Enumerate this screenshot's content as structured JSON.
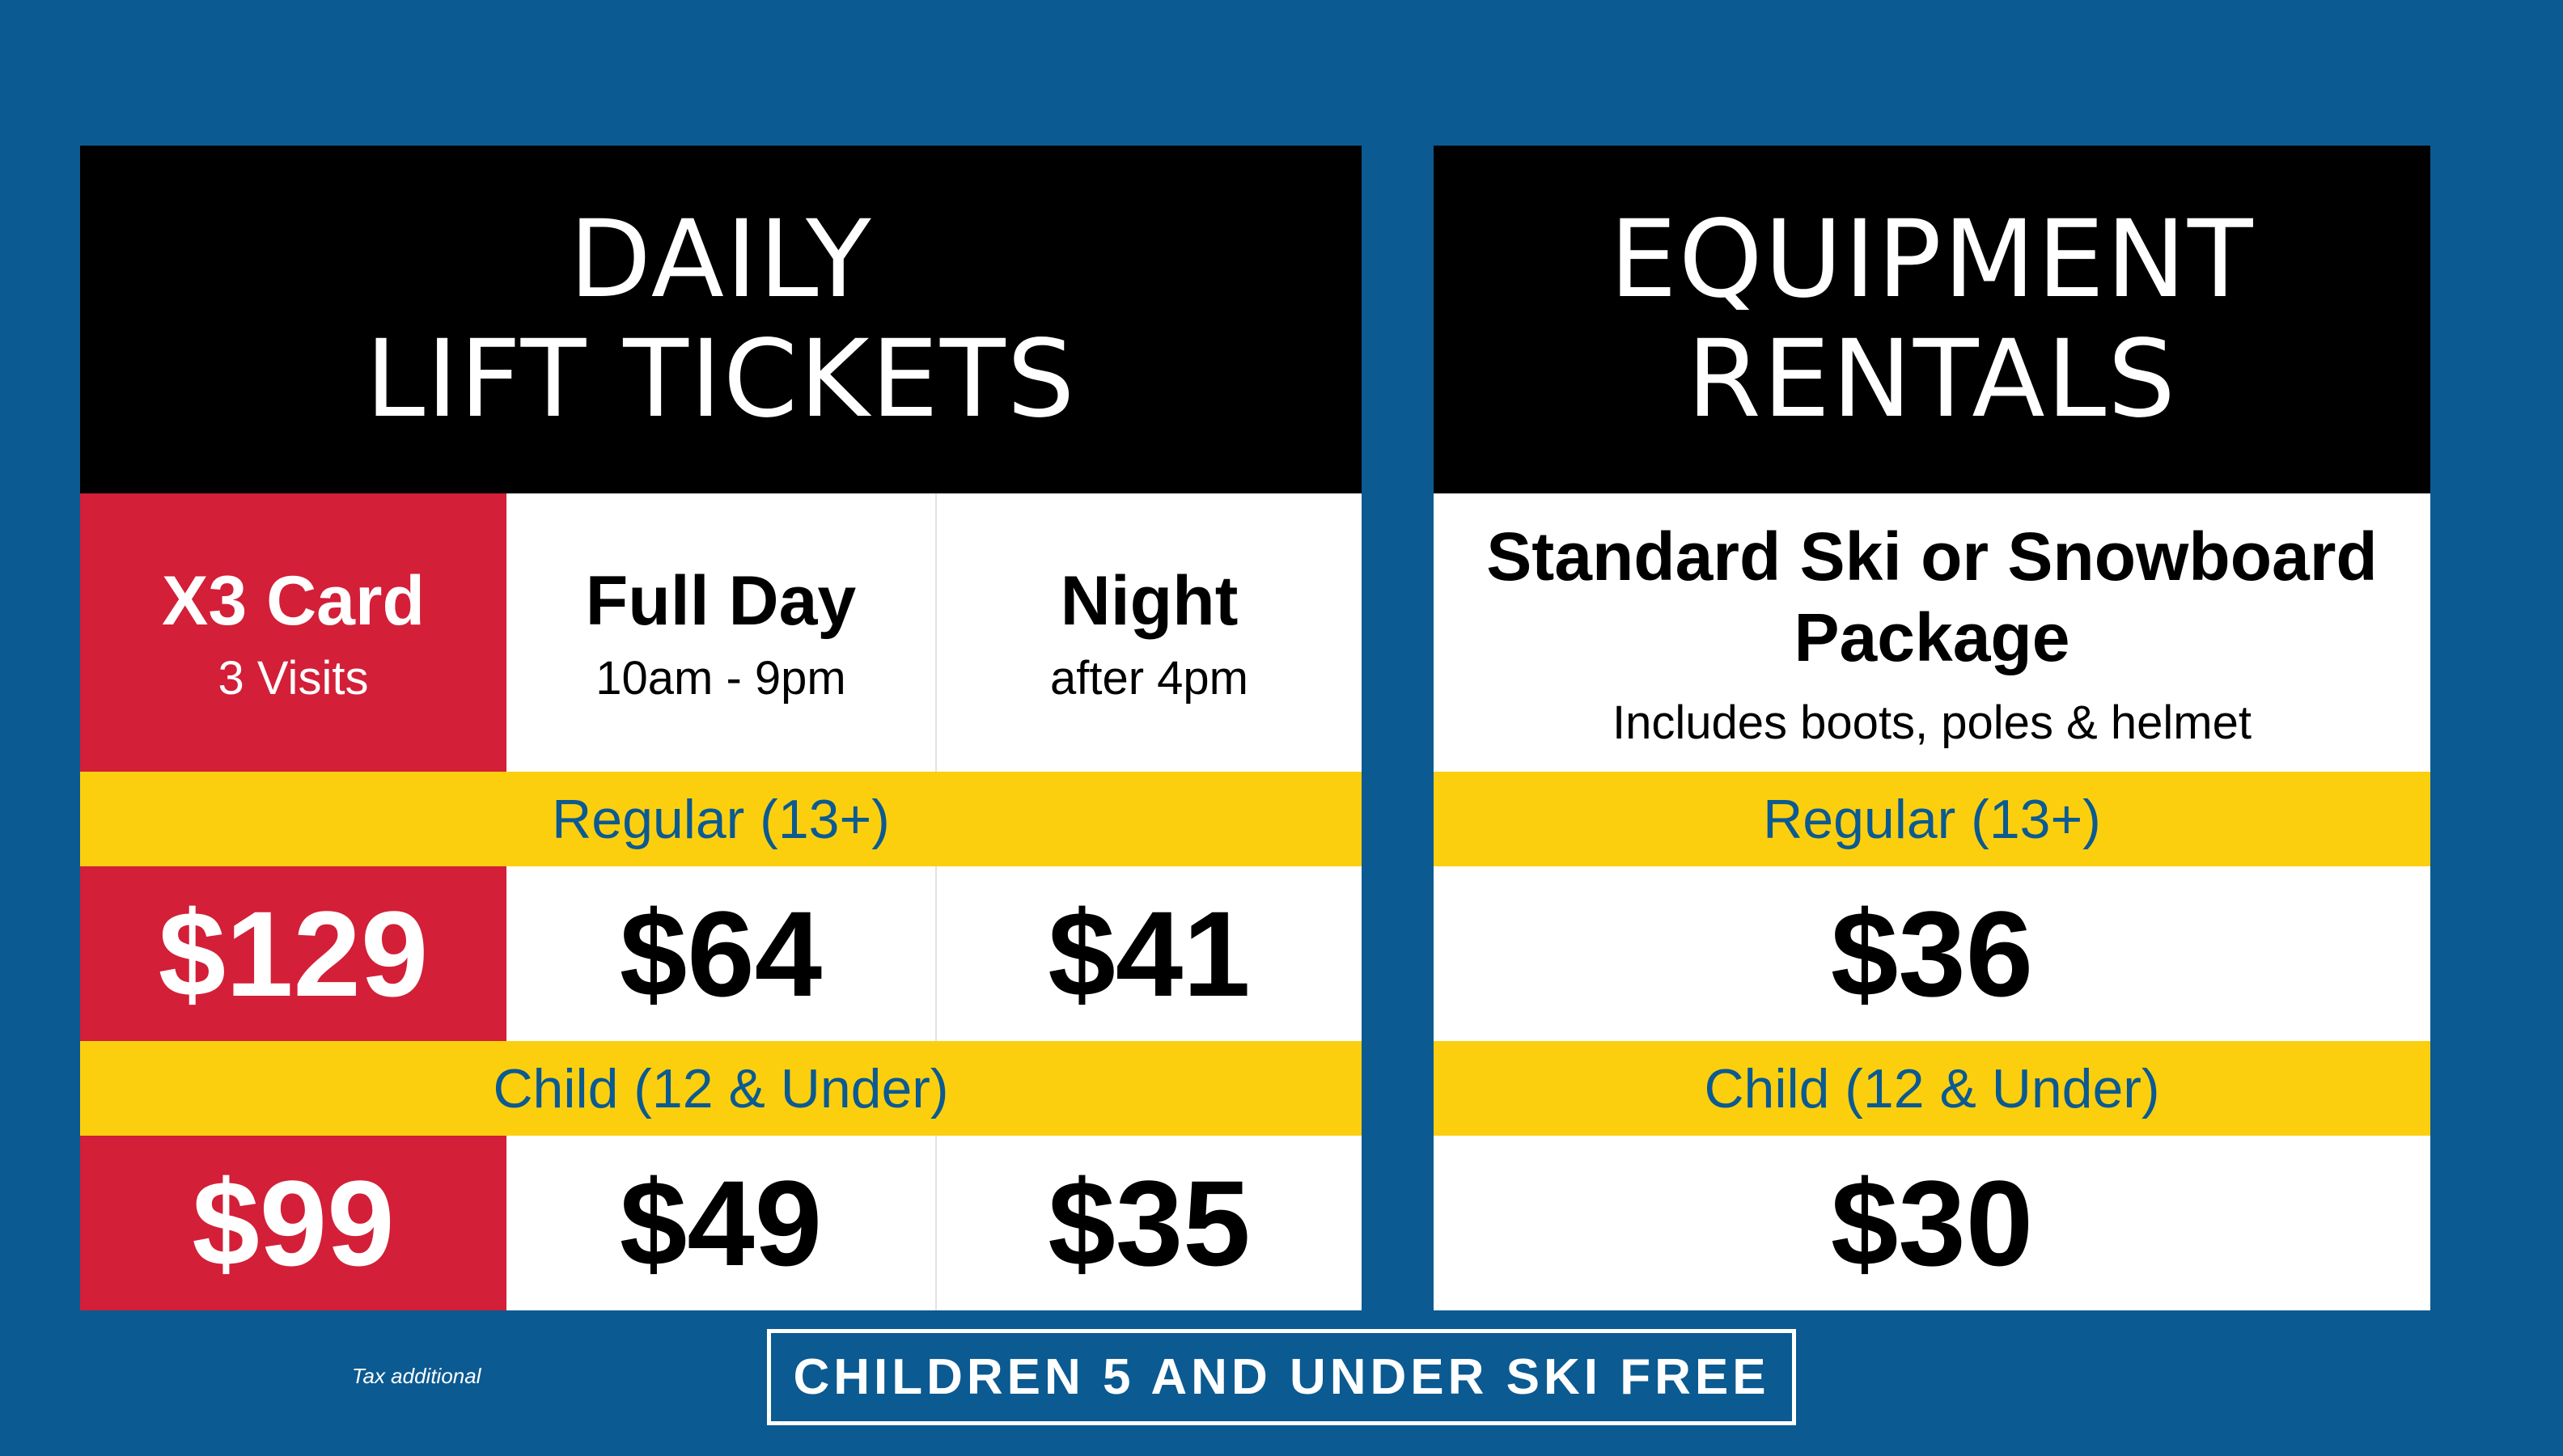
{
  "colors": {
    "background": "#0b5a91",
    "accent_red": "#d31f38",
    "band_yellow": "#fccf0e",
    "band_text": "#0b5a91"
  },
  "lift_tickets": {
    "title_line1": "DAILY",
    "title_line2": "LIFT TICKETS",
    "columns": [
      {
        "title": "X3 Card",
        "subtitle": "3 Visits"
      },
      {
        "title": "Full Day",
        "subtitle": "10am - 9pm"
      },
      {
        "title": "Night",
        "subtitle": "after 4pm"
      }
    ],
    "regular_label": "Regular (13+)",
    "regular_prices": [
      "$129",
      "$64",
      "$41"
    ],
    "child_label": "Child (12 & Under)",
    "child_prices": [
      "$99",
      "$49",
      "$35"
    ]
  },
  "rentals": {
    "title_line1": "EQUIPMENT",
    "title_line2": "RENTALS",
    "package_title": "Standard Ski or Snowboard Package",
    "package_subtitle": "Includes boots, poles & helmet",
    "regular_label": "Regular (13+)",
    "regular_price": "$36",
    "child_label": "Child (12 & Under)",
    "child_price": "$30"
  },
  "footer": {
    "tax_note": "Tax additional",
    "promo": "CHILDREN 5 AND UNDER SKI FREE"
  }
}
